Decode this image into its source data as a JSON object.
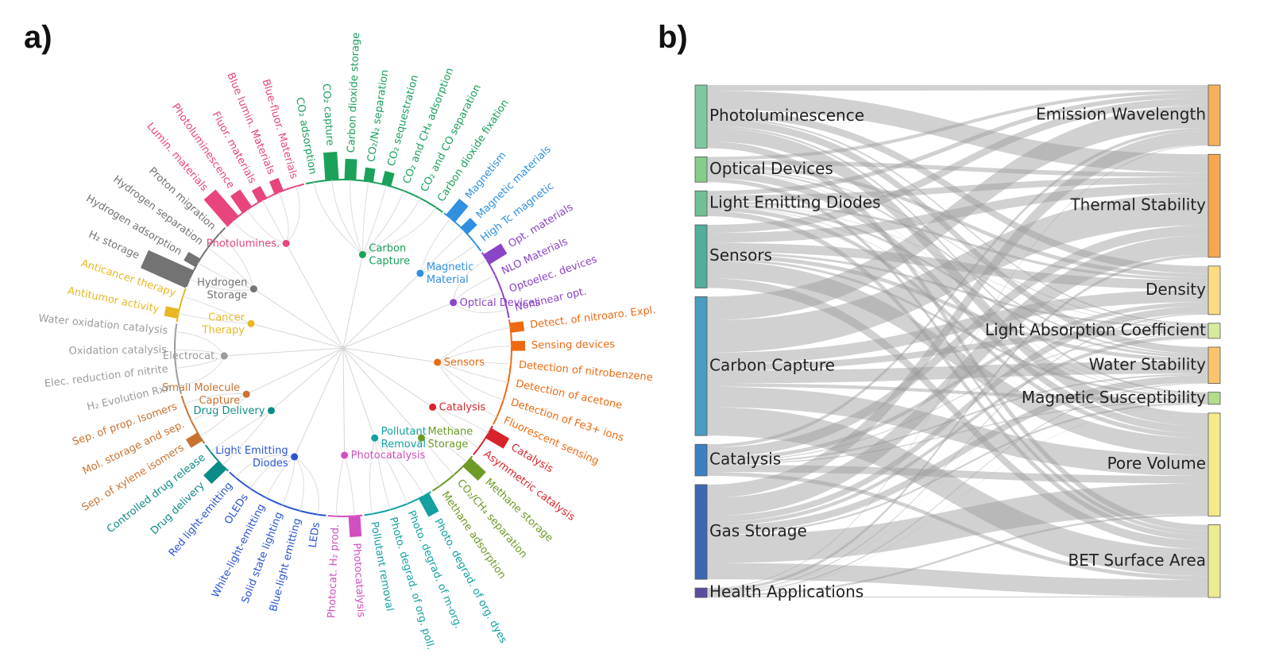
{
  "panel_a": {
    "label": "a)",
    "groups": [
      {
        "name": "Carbon\nCapture",
        "color": "#1aa15a",
        "items": [
          "CO₂ adsorption",
          "CO₂ capture",
          "Carbon dioxide storage",
          "CO₂/N₂ separation",
          "CO₂ sequestration",
          "CO₂ and CH₄ adsorption",
          "CO₂ and CO separation",
          "Carbon dioxide fixation"
        ],
        "weights": [
          0,
          3,
          2,
          1,
          1,
          0,
          0,
          0
        ]
      },
      {
        "name": "Magnetic\nMaterial",
        "color": "#2f8fe0",
        "items": [
          "Magnetism",
          "Magnetic materials",
          "High Tc magnetic"
        ],
        "weights": [
          2,
          1,
          0
        ]
      },
      {
        "name": "Optical Devices",
        "color": "#8a44c8",
        "items": [
          "Opt. materials",
          "NLO Materials",
          "Optoelec. devices",
          "Nonlinear opt."
        ],
        "weights": [
          2,
          0,
          0,
          0
        ]
      },
      {
        "name": "Sensors",
        "color": "#ee6a12",
        "items": [
          "Detect. of nitroaro. Expl.",
          "Sensing devices",
          "Detection of nitrobenzene",
          "Detection of acetone",
          "Detection of Fe3+ ions",
          "Fluorescent sensing"
        ],
        "weights": [
          1,
          1,
          0,
          0,
          0,
          0
        ]
      },
      {
        "name": "Catalysis",
        "color": "#d8232a",
        "items": [
          "Catalysis",
          "Asymmetric catalysis"
        ],
        "weights": [
          2,
          0
        ]
      },
      {
        "name": "Methane\nStorage",
        "color": "#6e9a26",
        "items": [
          "Methane storage",
          "CO₂/CH₄ separation",
          "Methane adsorption"
        ],
        "weights": [
          2,
          0,
          0
        ]
      },
      {
        "name": "Pollutant\nRemoval",
        "color": "#12a0a0",
        "items": [
          "Photo. degrad. of org. dyes",
          "Photo. degrad. of m-org.",
          "Photo. degrad. of org. poll.",
          "Pollutant removal"
        ],
        "weights": [
          2,
          0,
          0,
          0
        ]
      },
      {
        "name": "Photocatalysis",
        "color": "#d24fbf",
        "items": [
          "Photocatalysis",
          "Photocat. H₂ prod."
        ],
        "weights": [
          2,
          0
        ]
      },
      {
        "name": "Light Emitting\nDiodes",
        "color": "#2a53d4",
        "items": [
          "LEDs",
          "Blue-light emitting",
          "Solid state lighting",
          "White-light-emitting",
          "OLEDs",
          "Red light-emitting"
        ],
        "weights": [
          0,
          0,
          0,
          0,
          0,
          0
        ]
      },
      {
        "name": "Drug Delivery",
        "color": "#0c8c86",
        "items": [
          "Drug delivery",
          "Controlled drug release"
        ],
        "weights": [
          2,
          0
        ]
      },
      {
        "name": "Small Molecule\nCapture",
        "color": "#c97331",
        "items": [
          "Sep. of xylene isomers",
          "Mol. storage and sep.",
          "Sep. of prop. Isomers"
        ],
        "weights": [
          1,
          0,
          0
        ]
      },
      {
        "name": "Electrocat.",
        "color": "#9b9b9b",
        "items": [
          "H₂ Evolution Rxn",
          "Elec. reduction of nitrite",
          "Oxidation catalysis",
          "Water oxidation catalysis"
        ],
        "weights": [
          0,
          0,
          0,
          0
        ]
      },
      {
        "name": "Cancer\nTherapy",
        "color": "#e8b824",
        "items": [
          "Antitumor activity",
          "Anticancer therapy"
        ],
        "weights": [
          1,
          0
        ]
      },
      {
        "name": "Hydrogen\nStorage",
        "color": "#737373",
        "items": [
          "H₂ storage",
          "Hydrogen adsorption",
          "Hydrogen separation",
          "Proton migration"
        ],
        "weights": [
          6,
          1,
          0,
          0
        ]
      },
      {
        "name": "Photolumines.",
        "color": "#e8447d",
        "items": [
          "Lumin. materials",
          "Photoluminescence",
          "Fluor. materials",
          "Blue lumin. Materials",
          "Blue-fluor. Materials"
        ],
        "weights": [
          4,
          2,
          1,
          1,
          0
        ]
      }
    ]
  },
  "panel_b": {
    "label": "b)",
    "sources": [
      {
        "name": "Photoluminescence",
        "value": 10,
        "color": "#7ec8a0"
      },
      {
        "name": "Optical Devices",
        "value": 4,
        "color": "#86cc8a"
      },
      {
        "name": "Light Emitting Diodes",
        "value": 4,
        "color": "#6fc093"
      },
      {
        "name": "Sensors",
        "value": 10,
        "color": "#52ad9b"
      },
      {
        "name": "Carbon Capture",
        "value": 22,
        "color": "#4a9cc0"
      },
      {
        "name": "Catalysis",
        "value": 5,
        "color": "#3d7fc2"
      },
      {
        "name": "Gas Storage",
        "value": 15,
        "color": "#3f68b0"
      },
      {
        "name": "Health Applications",
        "value": 1.5,
        "color": "#5a4d9e"
      }
    ],
    "targets": [
      {
        "name": "Emission Wavelength",
        "value": 10,
        "color": "#f7b05a"
      },
      {
        "name": "Thermal Stability",
        "value": 17,
        "color": "#f5a74f"
      },
      {
        "name": "Density",
        "value": 8,
        "color": "#fbdc82"
      },
      {
        "name": "Light Absorption Coefficient",
        "value": 2.5,
        "color": "#d6eb9c"
      },
      {
        "name": "Water Stability",
        "value": 6,
        "color": "#f9c46b"
      },
      {
        "name": "Magnetic Susceptibility",
        "value": 2,
        "color": "#b2dd8c"
      },
      {
        "name": "Pore Volume",
        "value": 17,
        "color": "#f4ea8a"
      },
      {
        "name": "BET Surface Area",
        "value": 12,
        "color": "#ecec90"
      }
    ]
  }
}
